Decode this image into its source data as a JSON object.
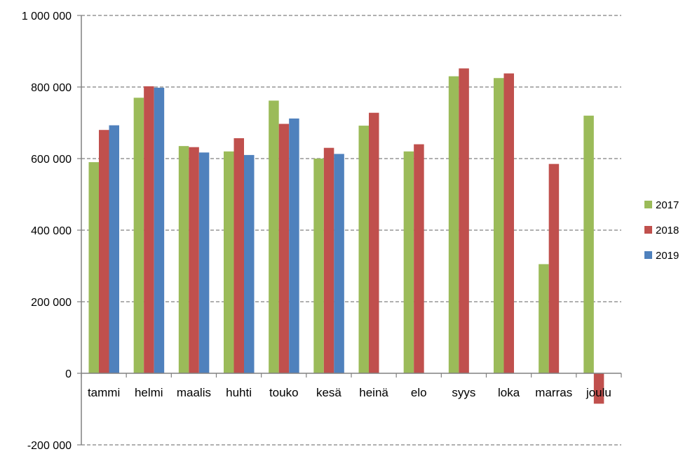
{
  "chart_data": {
    "type": "bar",
    "title": "",
    "xlabel": "",
    "ylabel": "",
    "ylim": [
      -200000,
      1000000
    ],
    "y_ticks": [
      -200000,
      0,
      200000,
      400000,
      600000,
      800000,
      1000000
    ],
    "y_tick_labels": [
      "-200 000",
      "0",
      "200 000",
      "400 000",
      "600 000",
      "800 000",
      "1 000 000"
    ],
    "grid": true,
    "legend_position": "right",
    "categories": [
      "tammi",
      "helmi",
      "maalis",
      "huhti",
      "touko",
      "kesä",
      "heinä",
      "elo",
      "syys",
      "loka",
      "marras",
      "joulu"
    ],
    "series": [
      {
        "name": "2017",
        "color": "#9BBB59",
        "values": [
          590000,
          770000,
          635000,
          620000,
          762000,
          600000,
          692000,
          620000,
          830000,
          825000,
          305000,
          720000
        ]
      },
      {
        "name": "2018",
        "color": "#C0504D",
        "values": [
          680000,
          802000,
          632000,
          657000,
          697000,
          630000,
          728000,
          640000,
          852000,
          838000,
          585000,
          -85000
        ]
      },
      {
        "name": "2019",
        "color": "#4F81BD",
        "values": [
          693000,
          798000,
          617000,
          610000,
          712000,
          613000,
          null,
          null,
          null,
          null,
          null,
          null
        ]
      }
    ]
  }
}
